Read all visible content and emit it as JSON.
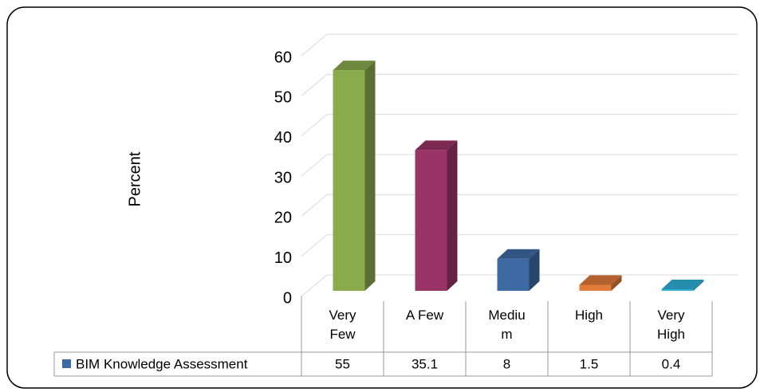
{
  "chart_data": {
    "type": "bar3d",
    "ylabel": "Percent",
    "categories": [
      "Very Few",
      "A Few",
      "Medium",
      "High",
      "Very High"
    ],
    "series": [
      {
        "name": "BIM Knowledge Assessment",
        "color": "#3e6aa3",
        "values": [
          55,
          35.1,
          8,
          1.5,
          0.4
        ]
      }
    ],
    "bar_colors": [
      "#8aab4c",
      "#9b3466",
      "#3e6aa3",
      "#e07b39",
      "#2eb0d9"
    ],
    "ylim": [
      0,
      60
    ],
    "yticks": [
      0,
      10,
      20,
      30,
      40,
      50,
      60
    ],
    "grid": true,
    "data_table": true
  }
}
